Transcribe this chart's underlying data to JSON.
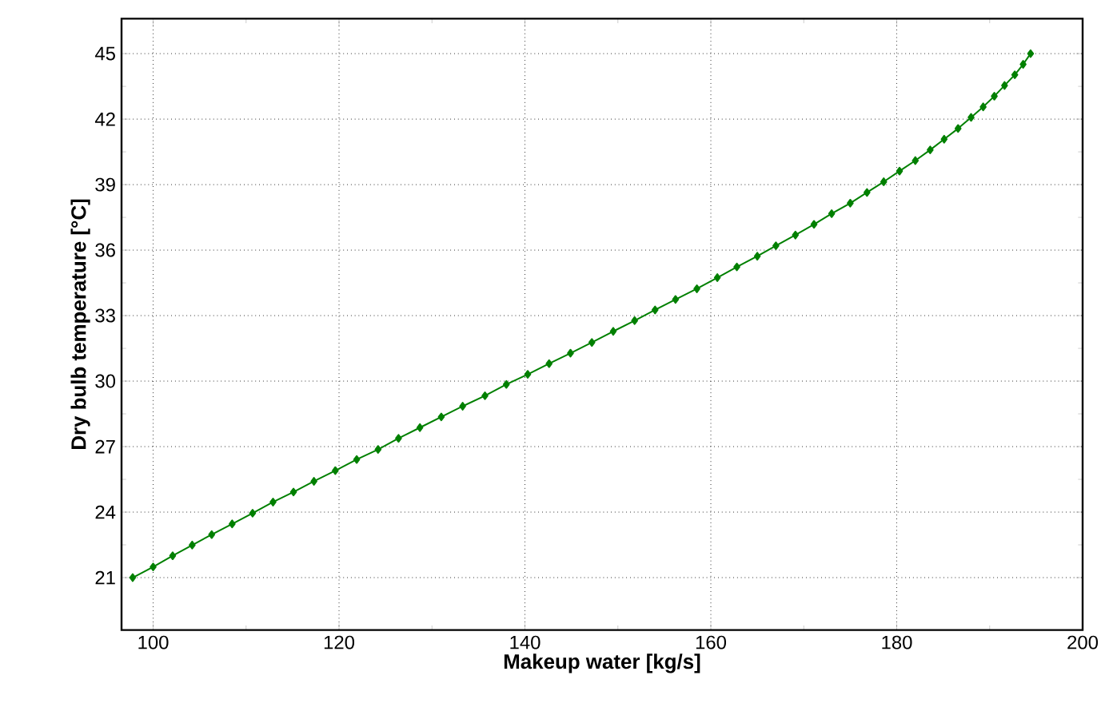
{
  "chart_data": {
    "type": "line",
    "xlabel": "Makeup water [kg/s]",
    "ylabel": "Dry bulb temperature [°C]",
    "xlim": [
      96.6,
      200
    ],
    "ylim": [
      18.6,
      46.6
    ],
    "xticks": [
      100,
      120,
      140,
      160,
      180,
      200
    ],
    "yticks": [
      21,
      24,
      27,
      30,
      33,
      36,
      39,
      42,
      45
    ],
    "grid": true,
    "marker": "diamond",
    "line_style": "solid",
    "series": [
      {
        "color": "#008000",
        "x": [
          97.8,
          100.0,
          102.1,
          104.2,
          106.3,
          108.5,
          110.7,
          112.9,
          115.1,
          117.3,
          119.6,
          121.9,
          124.2,
          126.4,
          128.7,
          131.0,
          133.3,
          135.7,
          138.0,
          140.3,
          142.6,
          144.9,
          147.2,
          149.5,
          151.8,
          154.0,
          156.2,
          158.5,
          160.7,
          162.8,
          165.0,
          167.0,
          169.1,
          171.1,
          173.0,
          175.0,
          176.8,
          178.6,
          180.3,
          182.0,
          183.6,
          185.1,
          186.6,
          188.0,
          189.3,
          190.5,
          191.6,
          192.7,
          193.6,
          194.4
        ],
        "values": [
          21.0,
          21.49,
          22.0,
          22.49,
          22.97,
          23.46,
          23.95,
          24.46,
          24.92,
          25.41,
          25.9,
          26.41,
          26.87,
          27.38,
          27.87,
          28.36,
          28.85,
          29.33,
          29.85,
          30.31,
          30.8,
          31.28,
          31.77,
          32.28,
          32.77,
          33.26,
          33.74,
          34.23,
          34.74,
          35.23,
          35.72,
          36.2,
          36.69,
          37.18,
          37.67,
          38.15,
          38.64,
          39.13,
          39.62,
          40.1,
          40.59,
          41.08,
          41.57,
          42.08,
          42.56,
          43.05,
          43.54,
          44.03,
          44.51,
          45.0
        ]
      }
    ]
  }
}
